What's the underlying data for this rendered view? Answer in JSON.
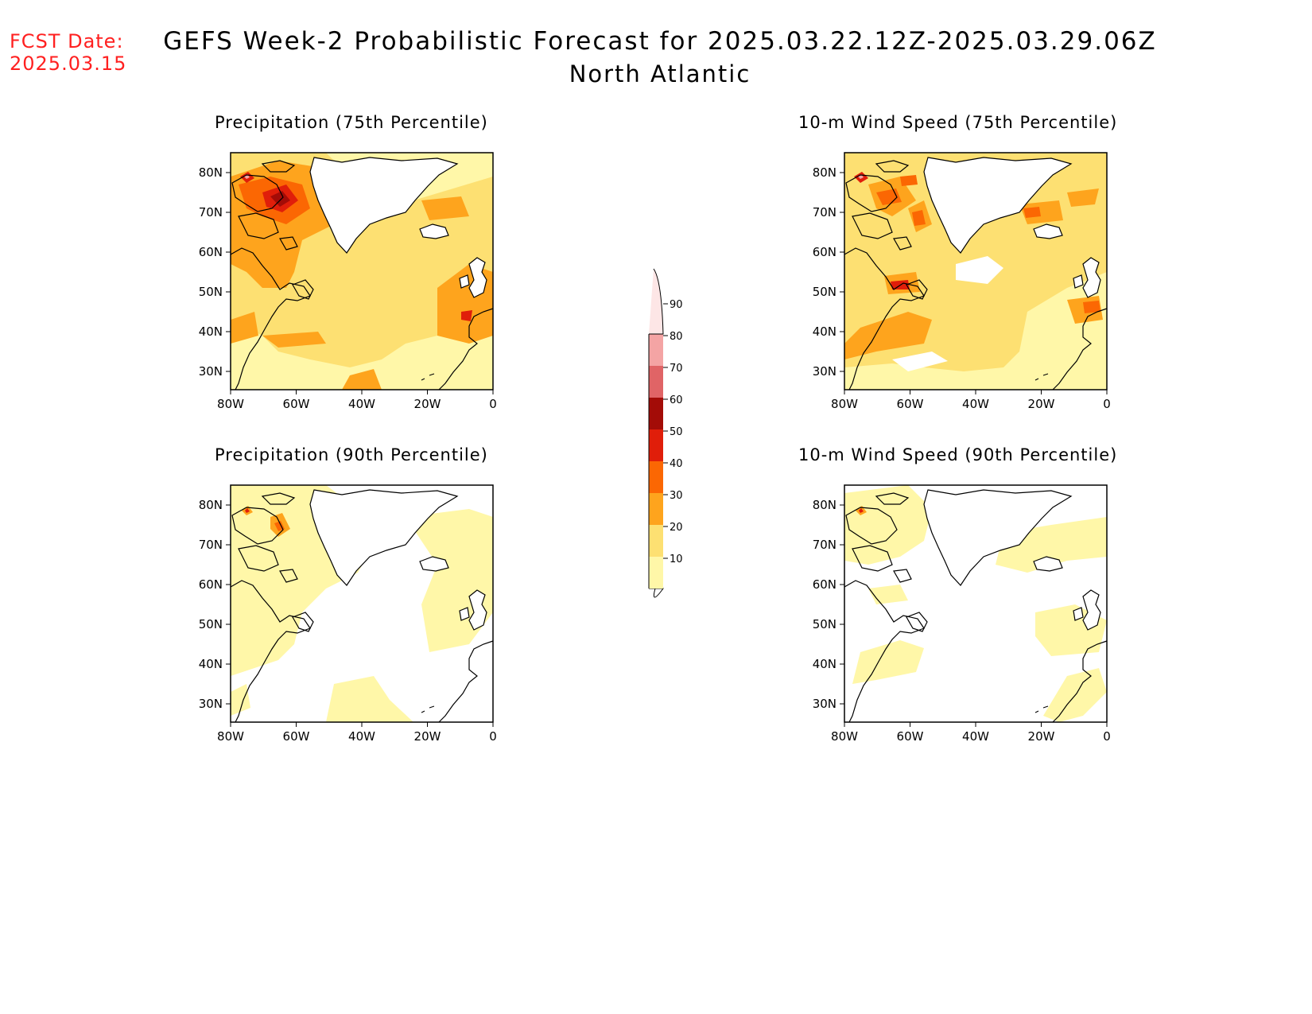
{
  "header": {
    "fcst_label": "FCST Date:",
    "fcst_date": "2025.03.15",
    "title": "GEFS Week-2 Probabilistic Forecast for 2025.03.22.12Z-2025.03.29.06Z",
    "subtitle": "North Atlantic"
  },
  "axes": {
    "lat_ticks": [
      "80N",
      "70N",
      "60N",
      "50N",
      "40N",
      "30N"
    ],
    "lon_ticks": [
      "80W",
      "60W",
      "40W",
      "20W",
      "0"
    ]
  },
  "panels": [
    {
      "title": "Precipitation (75th Percentile)"
    },
    {
      "title": "10-m Wind Speed (75th Percentile)"
    },
    {
      "title": "Precipitation (90th Percentile)"
    },
    {
      "title": "10-m Wind Speed (90th Percentile)"
    }
  ],
  "colorbar": {
    "levels": [
      "10",
      "20",
      "30",
      "40",
      "50",
      "60",
      "70",
      "80",
      "90"
    ],
    "colors": [
      "#fff7a8",
      "#fde072",
      "#fea41d",
      "#fb6703",
      "#e01e0a",
      "#a30c07",
      "#e06466",
      "#f4a4a4",
      "#fde6e6"
    ]
  }
}
